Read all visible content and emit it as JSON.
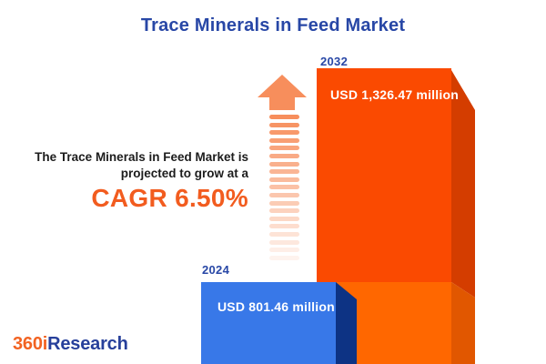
{
  "title": "Trace Minerals in Feed Market",
  "growth": {
    "line1": "The Trace Minerals in Feed Market is",
    "line2": "projected to grow at a",
    "cagr": "CAGR 6.50%"
  },
  "chart_data": {
    "type": "bar",
    "title": "Trace Minerals in Feed Market",
    "categories": [
      "2024",
      "2032"
    ],
    "values": [
      801.46,
      1326.47
    ],
    "unit": "USD million",
    "value_labels": [
      "USD 801.46 million",
      "USD 1,326.47 million"
    ],
    "cagr_percent": 6.5,
    "annotation": "The Trace Minerals in Feed Market is projected to grow at a CAGR 6.50%",
    "orientation": "vertical",
    "axes": "none",
    "gridlines": false,
    "legend": "none"
  },
  "logo": {
    "part1": "360i",
    "part2": "Research"
  },
  "colors": {
    "title_blue": "#2847A6",
    "text_dark": "#1C1C1C",
    "cagr_orange": "#F25C1F",
    "bar2032_front_top": "#FA4A01",
    "bar2032_front_bottom": "#FF6700",
    "bar2032_side_top": "#D43D00",
    "bar2032_side_bottom": "#E15700",
    "bar2024_front": "#3878E8",
    "bar2024_side": "#0D3384",
    "arrow_orange": "#F78E5C",
    "logo_orange": "#F26322",
    "logo_blue": "#27409B",
    "background": "#FFFFFF"
  }
}
